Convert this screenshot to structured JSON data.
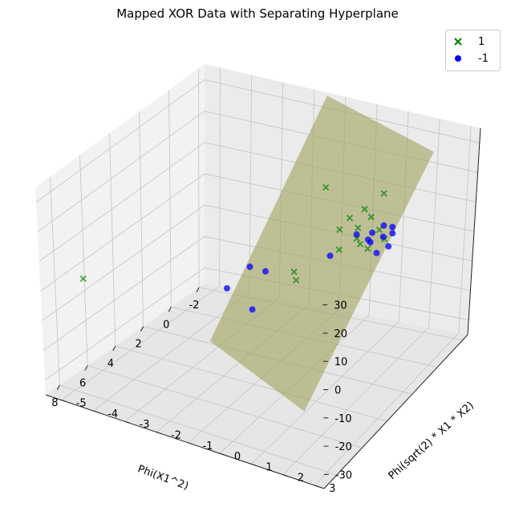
{
  "chart_data": {
    "type": "scatter",
    "projection": "3d",
    "title": "Mapped XOR Data with Separating Hyperplane",
    "xlabel": "Phi(X1^2)",
    "ylabel": "Phi(sqrt(2) * X1 * X2)",
    "zlabel": "",
    "xlim": [
      -2.4,
      9.0
    ],
    "ylim": [
      -5.5,
      3.3
    ],
    "zlim": [
      -35,
      35
    ],
    "xticks": [
      "-2",
      "0",
      "2",
      "4",
      "6",
      "8"
    ],
    "yticks": [
      "-5",
      "-4",
      "-3",
      "-2",
      "-1",
      "0",
      "1",
      "2",
      "3"
    ],
    "zticks": [
      "-30",
      "-20",
      "-10",
      "0",
      "10",
      "20",
      "30"
    ],
    "grid": true,
    "legend_position": "top-right",
    "series": [
      {
        "name": "1",
        "marker": "x",
        "color": "#008000",
        "points": [
          [
            8.0,
            -4.6,
            4.0
          ],
          [
            -1.6,
            -1.2,
            8.0
          ],
          [
            -1.3,
            0.8,
            12.0
          ],
          [
            -0.6,
            0.5,
            9.0
          ],
          [
            -0.4,
            0.8,
            8.0
          ],
          [
            -0.2,
            0.2,
            7.0
          ],
          [
            0.1,
            0.6,
            6.0
          ],
          [
            0.3,
            0.1,
            5.0
          ],
          [
            0.4,
            0.7,
            4.0
          ],
          [
            0.6,
            0.9,
            3.5
          ],
          [
            -0.1,
            1.2,
            6.0
          ],
          [
            0.2,
            1.5,
            5.0
          ],
          [
            1.0,
            0.4,
            2.0
          ],
          [
            2.0,
            -0.6,
            -4.0
          ],
          [
            2.3,
            -0.4,
            -5.0
          ],
          [
            0.5,
            1.1,
            2.0
          ]
        ]
      },
      {
        "name": "-1",
        "marker": "o",
        "color": "#0000ff",
        "points": [
          [
            5.5,
            -1.2,
            3.0
          ],
          [
            7.8,
            0.6,
            12.0
          ],
          [
            5.0,
            -0.2,
            10.0
          ],
          [
            4.3,
            -1.0,
            6.0
          ],
          [
            2.6,
            0.8,
            8.0
          ],
          [
            1.6,
            1.2,
            12.0
          ],
          [
            1.5,
            2.0,
            13.0
          ],
          [
            1.3,
            2.2,
            16.0
          ],
          [
            1.0,
            1.8,
            14.0
          ],
          [
            0.8,
            2.0,
            11.0
          ],
          [
            0.9,
            1.4,
            10.0
          ],
          [
            1.2,
            1.4,
            9.0
          ],
          [
            1.5,
            1.6,
            10.0
          ],
          [
            1.8,
            2.3,
            12.0
          ],
          [
            2.2,
            2.1,
            11.0
          ]
        ]
      }
    ],
    "surface": {
      "color": "#9a9a50",
      "label": "separating hyperplane"
    }
  }
}
